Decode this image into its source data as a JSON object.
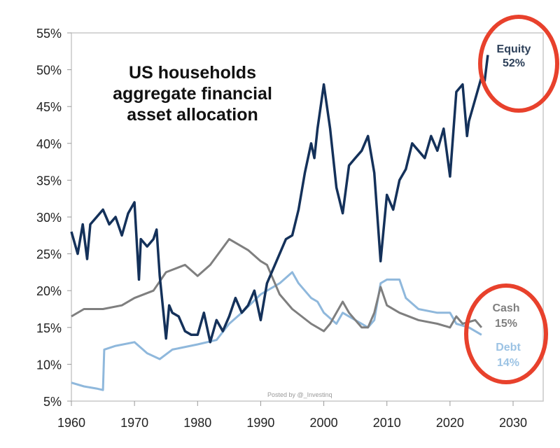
{
  "chart_data": {
    "type": "line",
    "title": [
      "US households",
      "aggregate financial",
      "asset allocation"
    ],
    "xlabel": "",
    "ylabel": "",
    "xlim": [
      1960,
      2030
    ],
    "ylim": [
      5,
      55
    ],
    "x_ticks": [
      "1960",
      "1970",
      "1980",
      "1990",
      "2000",
      "2010",
      "2020",
      "2030"
    ],
    "y_ticks": [
      "5%",
      "10%",
      "15%",
      "20%",
      "25%",
      "30%",
      "35%",
      "40%",
      "45%",
      "50%",
      "55%"
    ],
    "grid": false,
    "watermark": "Posted by @_Investinq",
    "colors": {
      "equity": "#14315a",
      "cash": "#7f7f7f",
      "debt": "#8fb8dc",
      "highlight": "#e8412c"
    },
    "annotations": [
      {
        "series": "Equity",
        "label": "Equity",
        "value": "52%"
      },
      {
        "series": "Cash",
        "label": "Cash",
        "value": "15%"
      },
      {
        "series": "Debt",
        "label": "Debt",
        "value": "14%"
      }
    ],
    "series": [
      {
        "name": "Equity",
        "points": [
          [
            1960,
            28
          ],
          [
            1961,
            25
          ],
          [
            1961.8,
            29
          ],
          [
            1962.5,
            24.3
          ],
          [
            1963,
            29
          ],
          [
            1964,
            30
          ],
          [
            1965,
            31
          ],
          [
            1966,
            29
          ],
          [
            1967,
            30
          ],
          [
            1968,
            27.5
          ],
          [
            1969,
            30.5
          ],
          [
            1970,
            32
          ],
          [
            1970.7,
            21.5
          ],
          [
            1971,
            27
          ],
          [
            1972,
            26
          ],
          [
            1973,
            27
          ],
          [
            1973.5,
            28.3
          ],
          [
            1974,
            22
          ],
          [
            1975,
            13.5
          ],
          [
            1975.5,
            18
          ],
          [
            1976,
            17
          ],
          [
            1977,
            16.5
          ],
          [
            1978,
            14.5
          ],
          [
            1979,
            14
          ],
          [
            1980,
            14
          ],
          [
            1981,
            17
          ],
          [
            1982,
            13
          ],
          [
            1983,
            16
          ],
          [
            1984,
            14.5
          ],
          [
            1985,
            16.5
          ],
          [
            1986,
            19
          ],
          [
            1987,
            17
          ],
          [
            1988,
            18
          ],
          [
            1989,
            20
          ],
          [
            1990,
            16
          ],
          [
            1991,
            21
          ],
          [
            1992,
            23
          ],
          [
            1993,
            25
          ],
          [
            1994,
            27
          ],
          [
            1995,
            27.5
          ],
          [
            1996,
            31
          ],
          [
            1997,
            36
          ],
          [
            1998,
            40
          ],
          [
            1998.5,
            38
          ],
          [
            1999,
            42
          ],
          [
            2000,
            48
          ],
          [
            2001,
            42
          ],
          [
            2002,
            34
          ],
          [
            2003,
            30.5
          ],
          [
            2004,
            37
          ],
          [
            2005,
            38
          ],
          [
            2006,
            39
          ],
          [
            2007,
            41
          ],
          [
            2008,
            36
          ],
          [
            2009,
            24
          ],
          [
            2010,
            33
          ],
          [
            2011,
            31
          ],
          [
            2012,
            35
          ],
          [
            2013,
            36.5
          ],
          [
            2014,
            40
          ],
          [
            2015,
            39
          ],
          [
            2016,
            38
          ],
          [
            2017,
            41
          ],
          [
            2018,
            39
          ],
          [
            2019,
            42
          ],
          [
            2020,
            35.5
          ],
          [
            2021,
            47
          ],
          [
            2022,
            48
          ],
          [
            2022.7,
            41
          ],
          [
            2023,
            43
          ],
          [
            2024,
            46
          ],
          [
            2025,
            49
          ],
          [
            2025.5,
            48.5
          ],
          [
            2026,
            52
          ]
        ]
      },
      {
        "name": "Cash",
        "points": [
          [
            1960,
            16.5
          ],
          [
            1962,
            17.5
          ],
          [
            1965,
            17.5
          ],
          [
            1968,
            18
          ],
          [
            1970,
            19
          ],
          [
            1973,
            20
          ],
          [
            1975,
            22.5
          ],
          [
            1978,
            23.5
          ],
          [
            1980,
            22
          ],
          [
            1982,
            23.5
          ],
          [
            1985,
            27
          ],
          [
            1988,
            25.5
          ],
          [
            1990,
            24
          ],
          [
            1991,
            23.5
          ],
          [
            1993,
            19.5
          ],
          [
            1995,
            17.5
          ],
          [
            1998,
            15.5
          ],
          [
            2000,
            14.5
          ],
          [
            2001,
            15.5
          ],
          [
            2003,
            18.5
          ],
          [
            2004,
            17
          ],
          [
            2006,
            15
          ],
          [
            2007,
            15
          ],
          [
            2008,
            17
          ],
          [
            2009,
            20.5
          ],
          [
            2010,
            18
          ],
          [
            2012,
            17
          ],
          [
            2015,
            16
          ],
          [
            2018,
            15.5
          ],
          [
            2020,
            15
          ],
          [
            2021,
            16.5
          ],
          [
            2022,
            15.5
          ],
          [
            2024,
            16
          ],
          [
            2025,
            15
          ]
        ]
      },
      {
        "name": "Debt",
        "points": [
          [
            1960,
            7.5
          ],
          [
            1962,
            7
          ],
          [
            1964,
            6.7
          ],
          [
            1965,
            6.5
          ],
          [
            1965.2,
            12
          ],
          [
            1967,
            12.5
          ],
          [
            1970,
            13
          ],
          [
            1972,
            11.5
          ],
          [
            1974,
            10.7
          ],
          [
            1976,
            12
          ],
          [
            1980,
            12.7
          ],
          [
            1983,
            13.3
          ],
          [
            1985,
            15.5
          ],
          [
            1987,
            17
          ],
          [
            1990,
            19.5
          ],
          [
            1993,
            21
          ],
          [
            1995,
            22.5
          ],
          [
            1996,
            21
          ],
          [
            1998,
            19
          ],
          [
            1999,
            18.5
          ],
          [
            2000,
            17
          ],
          [
            2002,
            15.5
          ],
          [
            2003,
            17
          ],
          [
            2005,
            16
          ],
          [
            2007,
            15
          ],
          [
            2008,
            16
          ],
          [
            2009,
            21
          ],
          [
            2010,
            21.5
          ],
          [
            2012,
            21.5
          ],
          [
            2013,
            19
          ],
          [
            2015,
            17.5
          ],
          [
            2018,
            17
          ],
          [
            2020,
            17
          ],
          [
            2021,
            15.5
          ],
          [
            2023,
            15
          ],
          [
            2025,
            14
          ]
        ]
      }
    ]
  }
}
